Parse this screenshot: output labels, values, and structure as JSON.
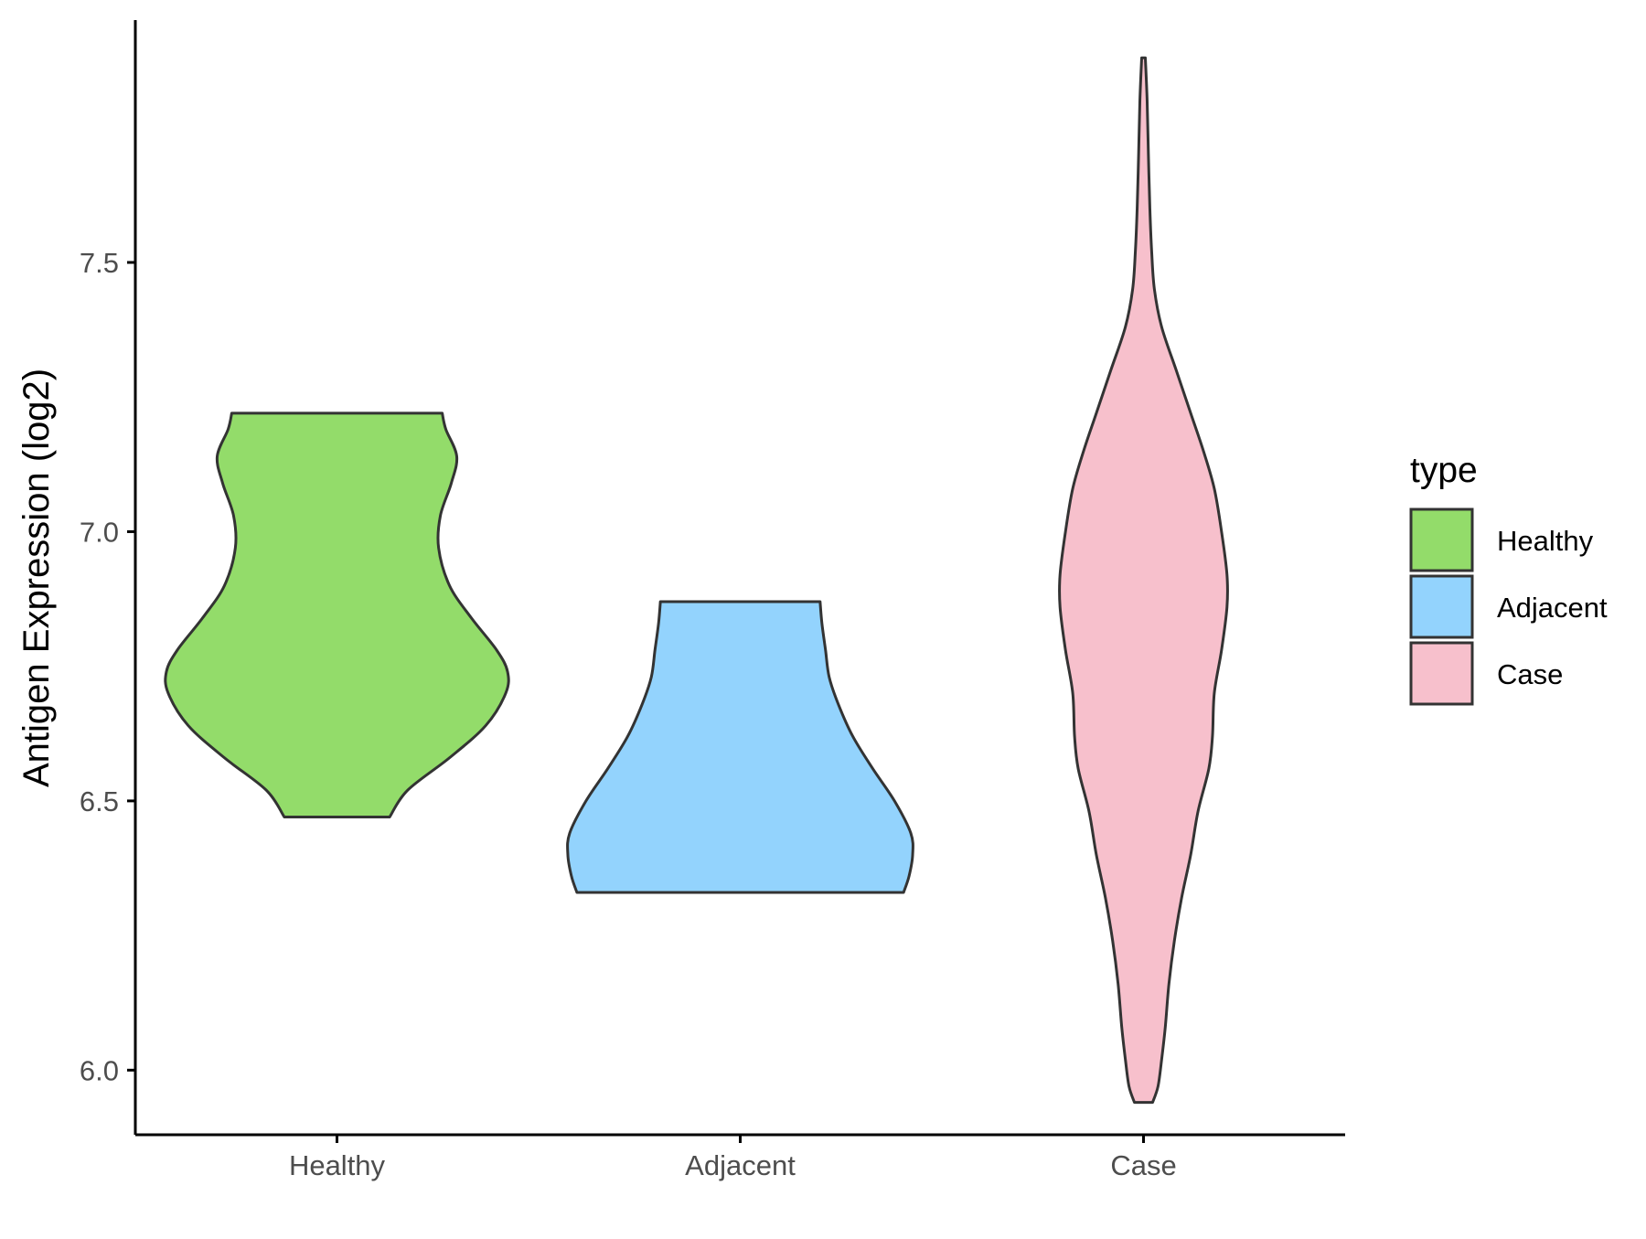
{
  "chart_data": {
    "type": "violin",
    "title": "",
    "xlabel": "",
    "ylabel": "Antigen Expression (log2)",
    "ylim": [
      5.88,
      7.95
    ],
    "yticks": [
      6.0,
      6.5,
      7.0,
      7.5
    ],
    "ytick_labels": [
      "6.0",
      "6.5",
      "7.0",
      "7.5"
    ],
    "categories": [
      "Healthy",
      "Adjacent",
      "Case"
    ],
    "legend": {
      "title": "type",
      "position": "right",
      "entries": [
        "Healthy",
        "Adjacent",
        "Case"
      ]
    },
    "grid": false,
    "colors": {
      "Healthy": "#93dc6a",
      "Adjacent": "#93d3fd",
      "Case": "#f7c0cc",
      "outline": "#333333",
      "axis": "#000000"
    },
    "series": [
      {
        "name": "Healthy",
        "min": 6.47,
        "max": 7.22,
        "density": [
          [
            6.47,
            0.29
          ],
          [
            6.52,
            0.39
          ],
          [
            6.58,
            0.62
          ],
          [
            6.64,
            0.82
          ],
          [
            6.7,
            0.93
          ],
          [
            6.74,
            0.94
          ],
          [
            6.78,
            0.88
          ],
          [
            6.84,
            0.74
          ],
          [
            6.9,
            0.62
          ],
          [
            6.97,
            0.56
          ],
          [
            7.03,
            0.57
          ],
          [
            7.09,
            0.63
          ],
          [
            7.14,
            0.66
          ],
          [
            7.19,
            0.6
          ],
          [
            7.22,
            0.58
          ]
        ]
      },
      {
        "name": "Adjacent",
        "min": 6.33,
        "max": 6.87,
        "density": [
          [
            6.33,
            0.9
          ],
          [
            6.36,
            0.93
          ],
          [
            6.4,
            0.95
          ],
          [
            6.44,
            0.94
          ],
          [
            6.5,
            0.85
          ],
          [
            6.56,
            0.73
          ],
          [
            6.62,
            0.62
          ],
          [
            6.68,
            0.54
          ],
          [
            6.73,
            0.49
          ],
          [
            6.78,
            0.47
          ],
          [
            6.83,
            0.45
          ],
          [
            6.87,
            0.44
          ]
        ]
      },
      {
        "name": "Case",
        "min": 5.94,
        "max": 7.88,
        "density": [
          [
            5.94,
            0.05
          ],
          [
            5.97,
            0.08
          ],
          [
            6.02,
            0.1
          ],
          [
            6.08,
            0.12
          ],
          [
            6.16,
            0.14
          ],
          [
            6.24,
            0.17
          ],
          [
            6.32,
            0.21
          ],
          [
            6.4,
            0.26
          ],
          [
            6.48,
            0.3
          ],
          [
            6.56,
            0.36
          ],
          [
            6.62,
            0.38
          ],
          [
            6.7,
            0.39
          ],
          [
            6.78,
            0.43
          ],
          [
            6.86,
            0.46
          ],
          [
            6.92,
            0.46
          ],
          [
            7.0,
            0.43
          ],
          [
            7.08,
            0.39
          ],
          [
            7.15,
            0.33
          ],
          [
            7.22,
            0.26
          ],
          [
            7.3,
            0.18
          ],
          [
            7.38,
            0.1
          ],
          [
            7.45,
            0.06
          ],
          [
            7.52,
            0.045
          ],
          [
            7.6,
            0.035
          ],
          [
            7.7,
            0.027
          ],
          [
            7.8,
            0.02
          ],
          [
            7.88,
            0.01
          ]
        ]
      }
    ]
  }
}
